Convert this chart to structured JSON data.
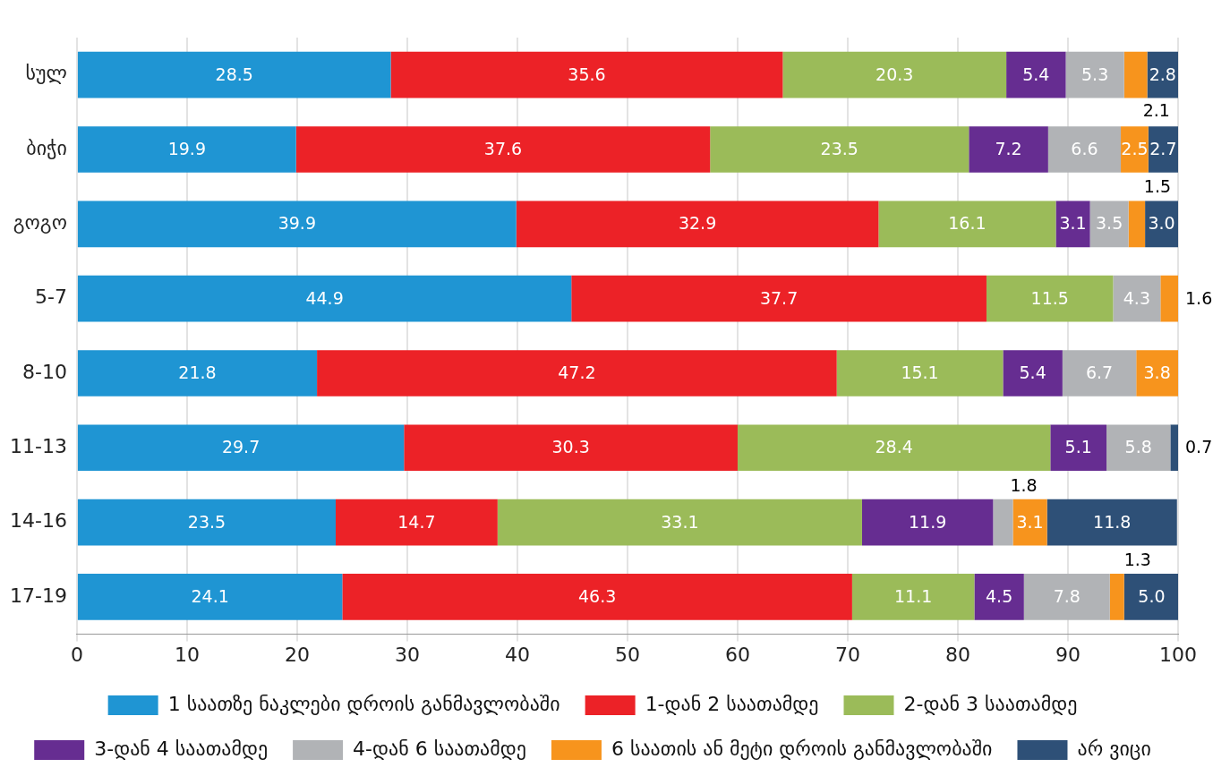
{
  "chart_data": {
    "type": "bar",
    "orientation": "horizontal",
    "stacked": true,
    "categories": [
      "სულ",
      "ბიჭი",
      "გოგო",
      "5-7",
      "8-10",
      "11-13",
      "14-16",
      "17-19"
    ],
    "series": [
      {
        "name": "1 საათზე ნაკლები დროის განმავლობაში",
        "color": "#1f95d3",
        "values": [
          28.5,
          19.9,
          39.9,
          44.9,
          21.8,
          29.7,
          23.5,
          24.1
        ],
        "value_labels": [
          "28.5",
          "19.9",
          "39.9",
          "44.9",
          "21.8",
          "29.7",
          "23.5",
          "24.1"
        ]
      },
      {
        "name": "1-დან 2 საათამდე",
        "color": "#ec2227",
        "values": [
          35.6,
          37.6,
          32.9,
          37.7,
          47.2,
          30.3,
          14.7,
          46.3
        ],
        "value_labels": [
          "35.6",
          "37.6",
          "32.9",
          "37.7",
          "47.2",
          "30.3",
          "14.7",
          "46.3"
        ]
      },
      {
        "name": "2-დან 3 საათამდე",
        "color": "#9bbb59",
        "values": [
          20.3,
          23.5,
          16.1,
          11.5,
          15.1,
          28.4,
          33.1,
          11.1
        ],
        "value_labels": [
          "20.3",
          "23.5",
          "16.1",
          "11.5",
          "15.1",
          "28.4",
          "33.1",
          "11.1"
        ]
      },
      {
        "name": "3-დან 4 საათამდე",
        "color": "#662d91",
        "values": [
          5.4,
          7.2,
          3.1,
          null,
          5.4,
          5.1,
          11.9,
          4.5
        ],
        "value_labels": [
          "5.4",
          "7.2",
          "3.1",
          null,
          "5.4",
          "5.1",
          "11.9",
          "4.5"
        ]
      },
      {
        "name": "4-დან 6 საათამდე",
        "color": "#b1b3b6",
        "values": [
          5.3,
          6.6,
          3.5,
          4.3,
          6.7,
          5.8,
          1.8,
          7.8
        ],
        "value_labels": [
          "5.3",
          "6.6",
          "3.5",
          "4.3",
          "6.7",
          "5.8",
          "1.8",
          "7.8"
        ]
      },
      {
        "name": "6 საათის ან მეტი დროის განმავლობაში",
        "color": "#f7941d",
        "values": [
          2.1,
          2.5,
          1.5,
          1.6,
          3.8,
          null,
          3.1,
          1.3
        ],
        "value_labels": [
          "2.1",
          "2.5",
          "1.5",
          "1.6",
          "3.8",
          null,
          "3.1",
          "1.3"
        ]
      },
      {
        "name": "არ ვიცი",
        "color": "#2e5077",
        "values": [
          2.8,
          2.7,
          3.0,
          null,
          null,
          0.7,
          11.8,
          5.0
        ],
        "value_labels": [
          "2.8",
          "2.7",
          "3.0",
          null,
          null,
          "0.7",
          "11.8",
          "5.0"
        ]
      }
    ],
    "xlim": [
      0,
      100
    ],
    "xticks": [
      0,
      10,
      20,
      30,
      40,
      50,
      60,
      70,
      80,
      90,
      100
    ],
    "grid": "x",
    "legend": "bottom"
  }
}
